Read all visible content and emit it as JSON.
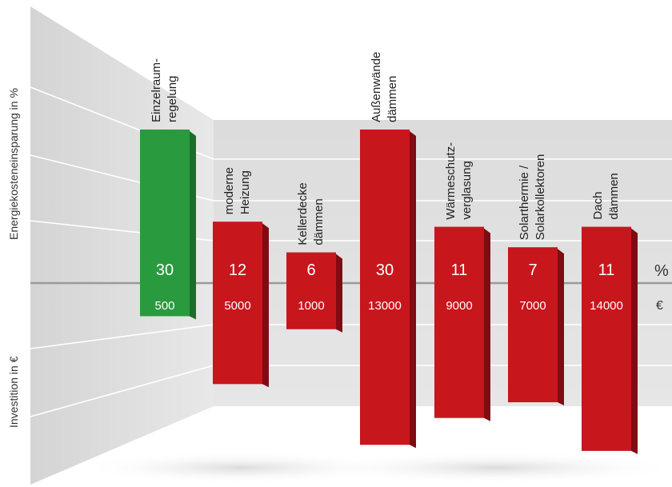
{
  "chart_data": {
    "type": "bar",
    "ylabel_top": "Energiekosteneinsparung in %",
    "ylabel_bottom": "Investition in €",
    "unit_top": "%",
    "unit_bottom": "€",
    "colors": {
      "green": "#2a9a3e",
      "red": "#c8161d"
    },
    "categories": [
      {
        "lines": [
          "Einzelraum-",
          "regelung"
        ],
        "savings": 30,
        "investment": 500,
        "color": "green"
      },
      {
        "lines": [
          "moderne",
          "Heizung"
        ],
        "savings": 12,
        "investment": 5000,
        "color": "red"
      },
      {
        "lines": [
          "Kellerdecke",
          "dämmen"
        ],
        "savings": 6,
        "investment": 1000,
        "color": "red"
      },
      {
        "lines": [
          "Außenwände",
          "dämmen"
        ],
        "savings": 30,
        "investment": 13000,
        "color": "red"
      },
      {
        "lines": [
          "Wärmeschutz-",
          "verglasung"
        ],
        "savings": 11,
        "investment": 9000,
        "color": "red"
      },
      {
        "lines": [
          "Solarthermie /",
          "Solarkollektoren"
        ],
        "savings": 7,
        "investment": 7000,
        "color": "red"
      },
      {
        "lines": [
          "Dach",
          "dämmen"
        ],
        "savings": 11,
        "investment": 14000,
        "color": "red"
      }
    ]
  }
}
